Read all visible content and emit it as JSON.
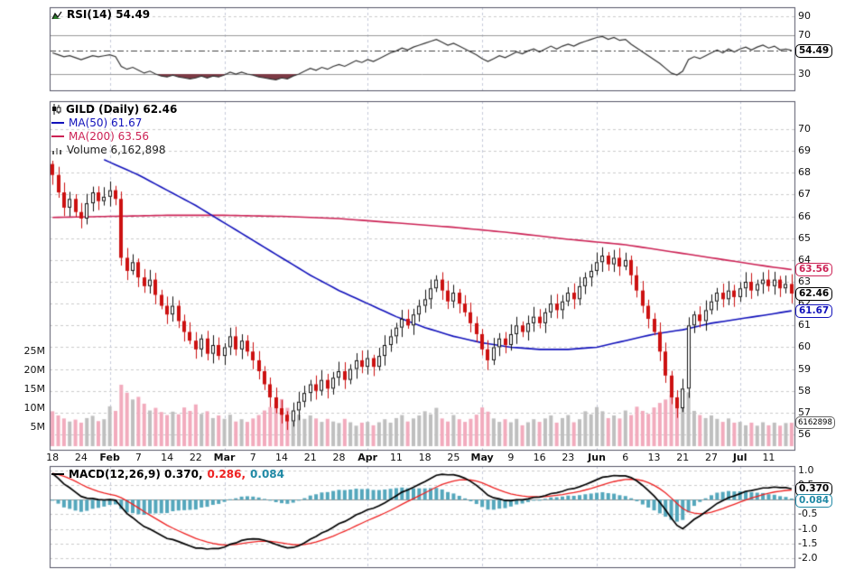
{
  "legends": {
    "rsi": "RSI(14) 54.49",
    "symbol": "GILD (Daily) 62.46",
    "ma50": "MA(50) 61.67",
    "ma200": "MA(200) 63.56",
    "volume": "Volume 6,162,898",
    "macd": "MACD(12,26,9) 0.370,",
    "macd_signal": "0.286,",
    "macd_hist": "0.084"
  },
  "badges": {
    "rsi": "54.49",
    "ma200": "63.56",
    "last": "62.46",
    "ma50": "61.67",
    "volume": "6162898",
    "macd": "0.370",
    "macd_hist": "0.084"
  },
  "colors": {
    "candle_down": "#cc1111",
    "candle_up": "#ffffff",
    "candle_up_border": "#111111",
    "ma50": "#1111bb",
    "ma200": "#cc2255",
    "volume_up": "#bfbfbf",
    "volume_down": "#f2abbd",
    "rsi_line": "#333333",
    "rsi_oversold_fill": "#7d3a45",
    "macd_line": "#000000",
    "signal_line": "#ee2222",
    "histogram": "#54a7bc",
    "grid": "#cccccc",
    "month_grid": "#c6cada",
    "panel_border": "#555566",
    "badge_teal": "#2089a5"
  },
  "chart_data": [
    {
      "type": "line",
      "panel": "rsi",
      "title": "RSI(14) 54.49",
      "period": 14,
      "last": 54.49,
      "ylim": [
        0,
        100
      ],
      "yticks": [
        {
          "label": "90",
          "value": 90
        },
        {
          "label": "70",
          "value": 70
        },
        {
          "label": "30",
          "value": 30
        }
      ],
      "reference_lines": [
        70,
        30
      ],
      "values": [
        52,
        50,
        48,
        49,
        47,
        45,
        47,
        49,
        48,
        49,
        50,
        48,
        38,
        35,
        37,
        34,
        31,
        33,
        30,
        28,
        27,
        29,
        27,
        26,
        25,
        26,
        28,
        26,
        28,
        27,
        29,
        32,
        30,
        32,
        30,
        29,
        27,
        26,
        25,
        24,
        26,
        25,
        28,
        30,
        33,
        36,
        34,
        37,
        35,
        38,
        40,
        38,
        41,
        44,
        42,
        45,
        43,
        46,
        49,
        52,
        54,
        57,
        55,
        58,
        60,
        62,
        64,
        66,
        63,
        60,
        62,
        59,
        56,
        53,
        50,
        46,
        43,
        46,
        49,
        47,
        50,
        53,
        51,
        54,
        56,
        53,
        56,
        59,
        56,
        59,
        61,
        59,
        62,
        64,
        66,
        68,
        69,
        66,
        68,
        65,
        66,
        61,
        57,
        53,
        49,
        45,
        41,
        36,
        31,
        29,
        33,
        45,
        48,
        46,
        49,
        52,
        55,
        52,
        56,
        53,
        56,
        58,
        55,
        58,
        60,
        57,
        59,
        55,
        56,
        54.49
      ]
    },
    {
      "type": "candlestick",
      "panel": "price",
      "title": "GILD (Daily) 62.46",
      "symbol": "GILD",
      "timeframe": "Daily",
      "last_price": 62.46,
      "ma50_last": 61.67,
      "ma200_last": 63.56,
      "volume_last": 6162898,
      "ylim": [
        56,
        70
      ],
      "yticks": [
        70,
        69,
        68,
        67,
        66,
        65,
        64,
        63,
        62,
        61,
        60,
        59,
        58,
        57,
        56
      ],
      "volume_ticks": [
        {
          "label": "25M",
          "millions": 25
        },
        {
          "label": "20M",
          "millions": 20
        },
        {
          "label": "15M",
          "millions": 15
        },
        {
          "label": "10M",
          "millions": 10
        },
        {
          "label": "5M",
          "millions": 5
        }
      ],
      "x_ticks": [
        {
          "label": "18",
          "day": 0
        },
        {
          "label": "24",
          "day": 5
        },
        {
          "label": "Feb",
          "day": 10,
          "month": true
        },
        {
          "label": "7",
          "day": 15
        },
        {
          "label": "14",
          "day": 20
        },
        {
          "label": "22",
          "day": 25
        },
        {
          "label": "Mar",
          "day": 30,
          "month": true
        },
        {
          "label": "7",
          "day": 35
        },
        {
          "label": "14",
          "day": 40
        },
        {
          "label": "21",
          "day": 45
        },
        {
          "label": "28",
          "day": 50
        },
        {
          "label": "Apr",
          "day": 55,
          "month": true
        },
        {
          "label": "11",
          "day": 60
        },
        {
          "label": "18",
          "day": 65
        },
        {
          "label": "25",
          "day": 70
        },
        {
          "label": "May",
          "day": 75,
          "month": true
        },
        {
          "label": "9",
          "day": 80
        },
        {
          "label": "16",
          "day": 85
        },
        {
          "label": "23",
          "day": 90
        },
        {
          "label": "Jun",
          "day": 95,
          "month": true
        },
        {
          "label": "6",
          "day": 100
        },
        {
          "label": "13",
          "day": 105
        },
        {
          "label": "21",
          "day": 110
        },
        {
          "label": "27",
          "day": 115
        },
        {
          "label": "Jul",
          "day": 120,
          "month": true
        },
        {
          "label": "11",
          "day": 125
        }
      ],
      "closes": [
        67.9,
        67.1,
        66.4,
        66.8,
        66.2,
        65.9,
        66.6,
        67.1,
        66.7,
        66.9,
        67.2,
        66.8,
        64.1,
        63.5,
        63.9,
        63.2,
        62.8,
        63.1,
        62.4,
        61.9,
        61.5,
        61.9,
        61.2,
        60.7,
        60.3,
        59.9,
        60.4,
        59.7,
        60.1,
        59.6,
        60.0,
        60.5,
        59.9,
        60.3,
        59.8,
        59.4,
        58.9,
        58.3,
        57.7,
        57.2,
        56.9,
        56.6,
        57.1,
        57.5,
        57.9,
        58.3,
        58.0,
        58.5,
        58.1,
        58.6,
        58.9,
        58.5,
        59.0,
        59.4,
        59.1,
        59.5,
        59.1,
        59.6,
        60.1,
        60.5,
        60.9,
        61.3,
        61.0,
        61.5,
        61.9,
        62.2,
        62.7,
        63.1,
        62.6,
        62.1,
        62.5,
        62.0,
        61.6,
        61.1,
        60.6,
        59.9,
        59.4,
        60.0,
        60.4,
        60.1,
        60.6,
        61.0,
        60.7,
        61.1,
        61.4,
        61.1,
        61.6,
        62.0,
        61.7,
        62.1,
        62.5,
        62.2,
        62.8,
        63.2,
        63.5,
        63.9,
        64.2,
        63.8,
        64.1,
        63.7,
        64.0,
        63.3,
        62.6,
        61.9,
        61.3,
        60.7,
        59.8,
        58.7,
        57.7,
        57.2,
        58.1,
        61.0,
        61.5,
        61.2,
        61.7,
        62.1,
        62.5,
        62.2,
        62.6,
        62.3,
        62.7,
        63.0,
        62.6,
        62.9,
        63.1,
        62.8,
        63.1,
        62.7,
        62.9,
        62.46
      ],
      "volumes_millions": [
        9.2,
        8.1,
        7.3,
        6.5,
        7.0,
        6.2,
        7.4,
        8.0,
        6.6,
        7.1,
        10.5,
        9.3,
        16.2,
        14.1,
        12.3,
        13.0,
        11.2,
        9.4,
        10.1,
        9.0,
        8.2,
        9.1,
        8.4,
        10.2,
        9.3,
        11.0,
        8.5,
        9.2,
        7.4,
        8.1,
        7.2,
        8.3,
        6.5,
        7.1,
        6.4,
        7.3,
        8.2,
        9.4,
        10.3,
        11.2,
        12.4,
        10.1,
        9.2,
        8.3,
        7.2,
        8.1,
        7.3,
        6.4,
        7.2,
        6.5,
        6.1,
        7.2,
        6.3,
        5.4,
        6.2,
        6.4,
        5.5,
        6.3,
        7.1,
        6.2,
        7.4,
        8.2,
        6.5,
        7.3,
        8.1,
        9.2,
        8.4,
        10.1,
        7.3,
        6.5,
        8.2,
        7.1,
        6.4,
        7.2,
        8.3,
        10.2,
        9.1,
        7.3,
        6.4,
        7.1,
        6.3,
        7.2,
        5.5,
        6.3,
        7.1,
        6.4,
        7.3,
        8.1,
        6.2,
        7.4,
        8.2,
        6.3,
        7.1,
        9.2,
        8.4,
        10.3,
        9.2,
        7.4,
        8.1,
        7.3,
        9.4,
        8.2,
        10.4,
        9.3,
        8.5,
        10.2,
        11.4,
        12.3,
        13.5,
        11.2,
        10.4,
        14.2,
        9.3,
        8.2,
        7.4,
        8.1,
        7.2,
        6.4,
        7.3,
        6.2,
        6.4,
        5.5,
        6.2,
        5.4,
        6.3,
        5.5,
        6.2,
        5.4,
        6.1,
        6.162898
      ],
      "ma50_anchors": [
        [
          9,
          68.6
        ],
        [
          15,
          67.9
        ],
        [
          20,
          67.2
        ],
        [
          25,
          66.5
        ],
        [
          30,
          65.7
        ],
        [
          35,
          64.9
        ],
        [
          40,
          64.1
        ],
        [
          45,
          63.3
        ],
        [
          50,
          62.6
        ],
        [
          55,
          62.0
        ],
        [
          60,
          61.4
        ],
        [
          65,
          60.9
        ],
        [
          70,
          60.5
        ],
        [
          75,
          60.2
        ],
        [
          80,
          60.0
        ],
        [
          85,
          59.9
        ],
        [
          90,
          59.9
        ],
        [
          95,
          60.0
        ],
        [
          100,
          60.3
        ],
        [
          105,
          60.6
        ],
        [
          110,
          60.8
        ],
        [
          115,
          61.1
        ],
        [
          120,
          61.3
        ],
        [
          125,
          61.5
        ],
        [
          129,
          61.67
        ]
      ],
      "ma200_anchors": [
        [
          0,
          65.95
        ],
        [
          10,
          66.0
        ],
        [
          20,
          66.05
        ],
        [
          30,
          66.05
        ],
        [
          40,
          66.0
        ],
        [
          50,
          65.9
        ],
        [
          60,
          65.7
        ],
        [
          70,
          65.5
        ],
        [
          80,
          65.25
        ],
        [
          90,
          64.95
        ],
        [
          100,
          64.7
        ],
        [
          105,
          64.5
        ],
        [
          110,
          64.3
        ],
        [
          115,
          64.1
        ],
        [
          120,
          63.9
        ],
        [
          125,
          63.7
        ],
        [
          129,
          63.56
        ]
      ]
    },
    {
      "type": "line",
      "panel": "macd",
      "title": "MACD(12,26,9) 0.370, 0.286, 0.084",
      "params": [
        12,
        26,
        9
      ],
      "macd_last": 0.37,
      "signal_last": 0.286,
      "hist_last": 0.084,
      "ylim": [
        -2.0,
        1.0
      ],
      "yticks": [
        {
          "label": "1.0",
          "value": 1.0
        },
        {
          "label": "0.5",
          "value": 0.5
        },
        {
          "label": "-0.5",
          "value": -0.5
        },
        {
          "label": "-1.0",
          "value": -1.0
        },
        {
          "label": "-1.5",
          "value": -1.5
        },
        {
          "label": "-2.0",
          "value": -2.0
        }
      ]
    }
  ]
}
